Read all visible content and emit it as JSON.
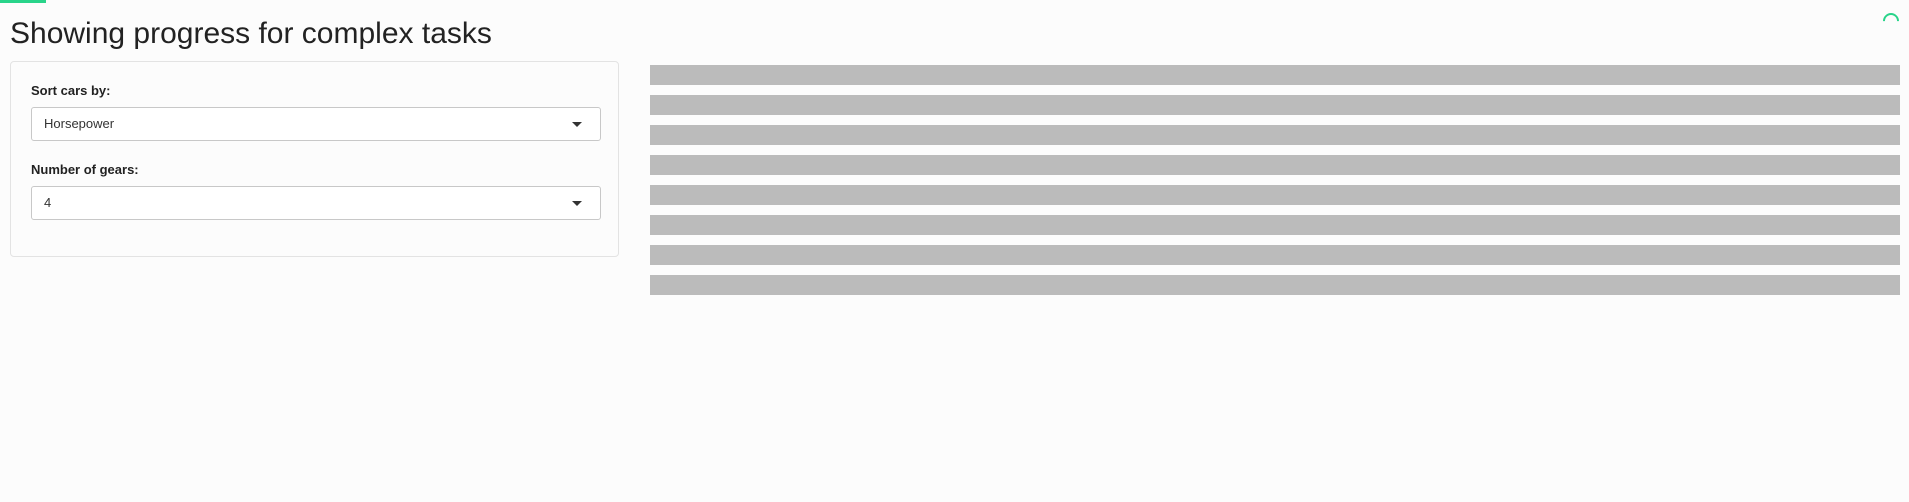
{
  "page": {
    "title": "Showing progress for complex tasks",
    "progress": {
      "fraction": 0.024,
      "color": "#29d48a"
    }
  },
  "sidebar": {
    "sort": {
      "label": "Sort cars by:",
      "selected": "Horsepower",
      "icon": "chevron-down-icon"
    },
    "gears": {
      "label": "Number of gears:",
      "selected": "4",
      "icon": "chevron-down-icon"
    }
  },
  "main": {
    "placeholder_rows": 8,
    "placeholder_color": "#bbbbbb"
  }
}
